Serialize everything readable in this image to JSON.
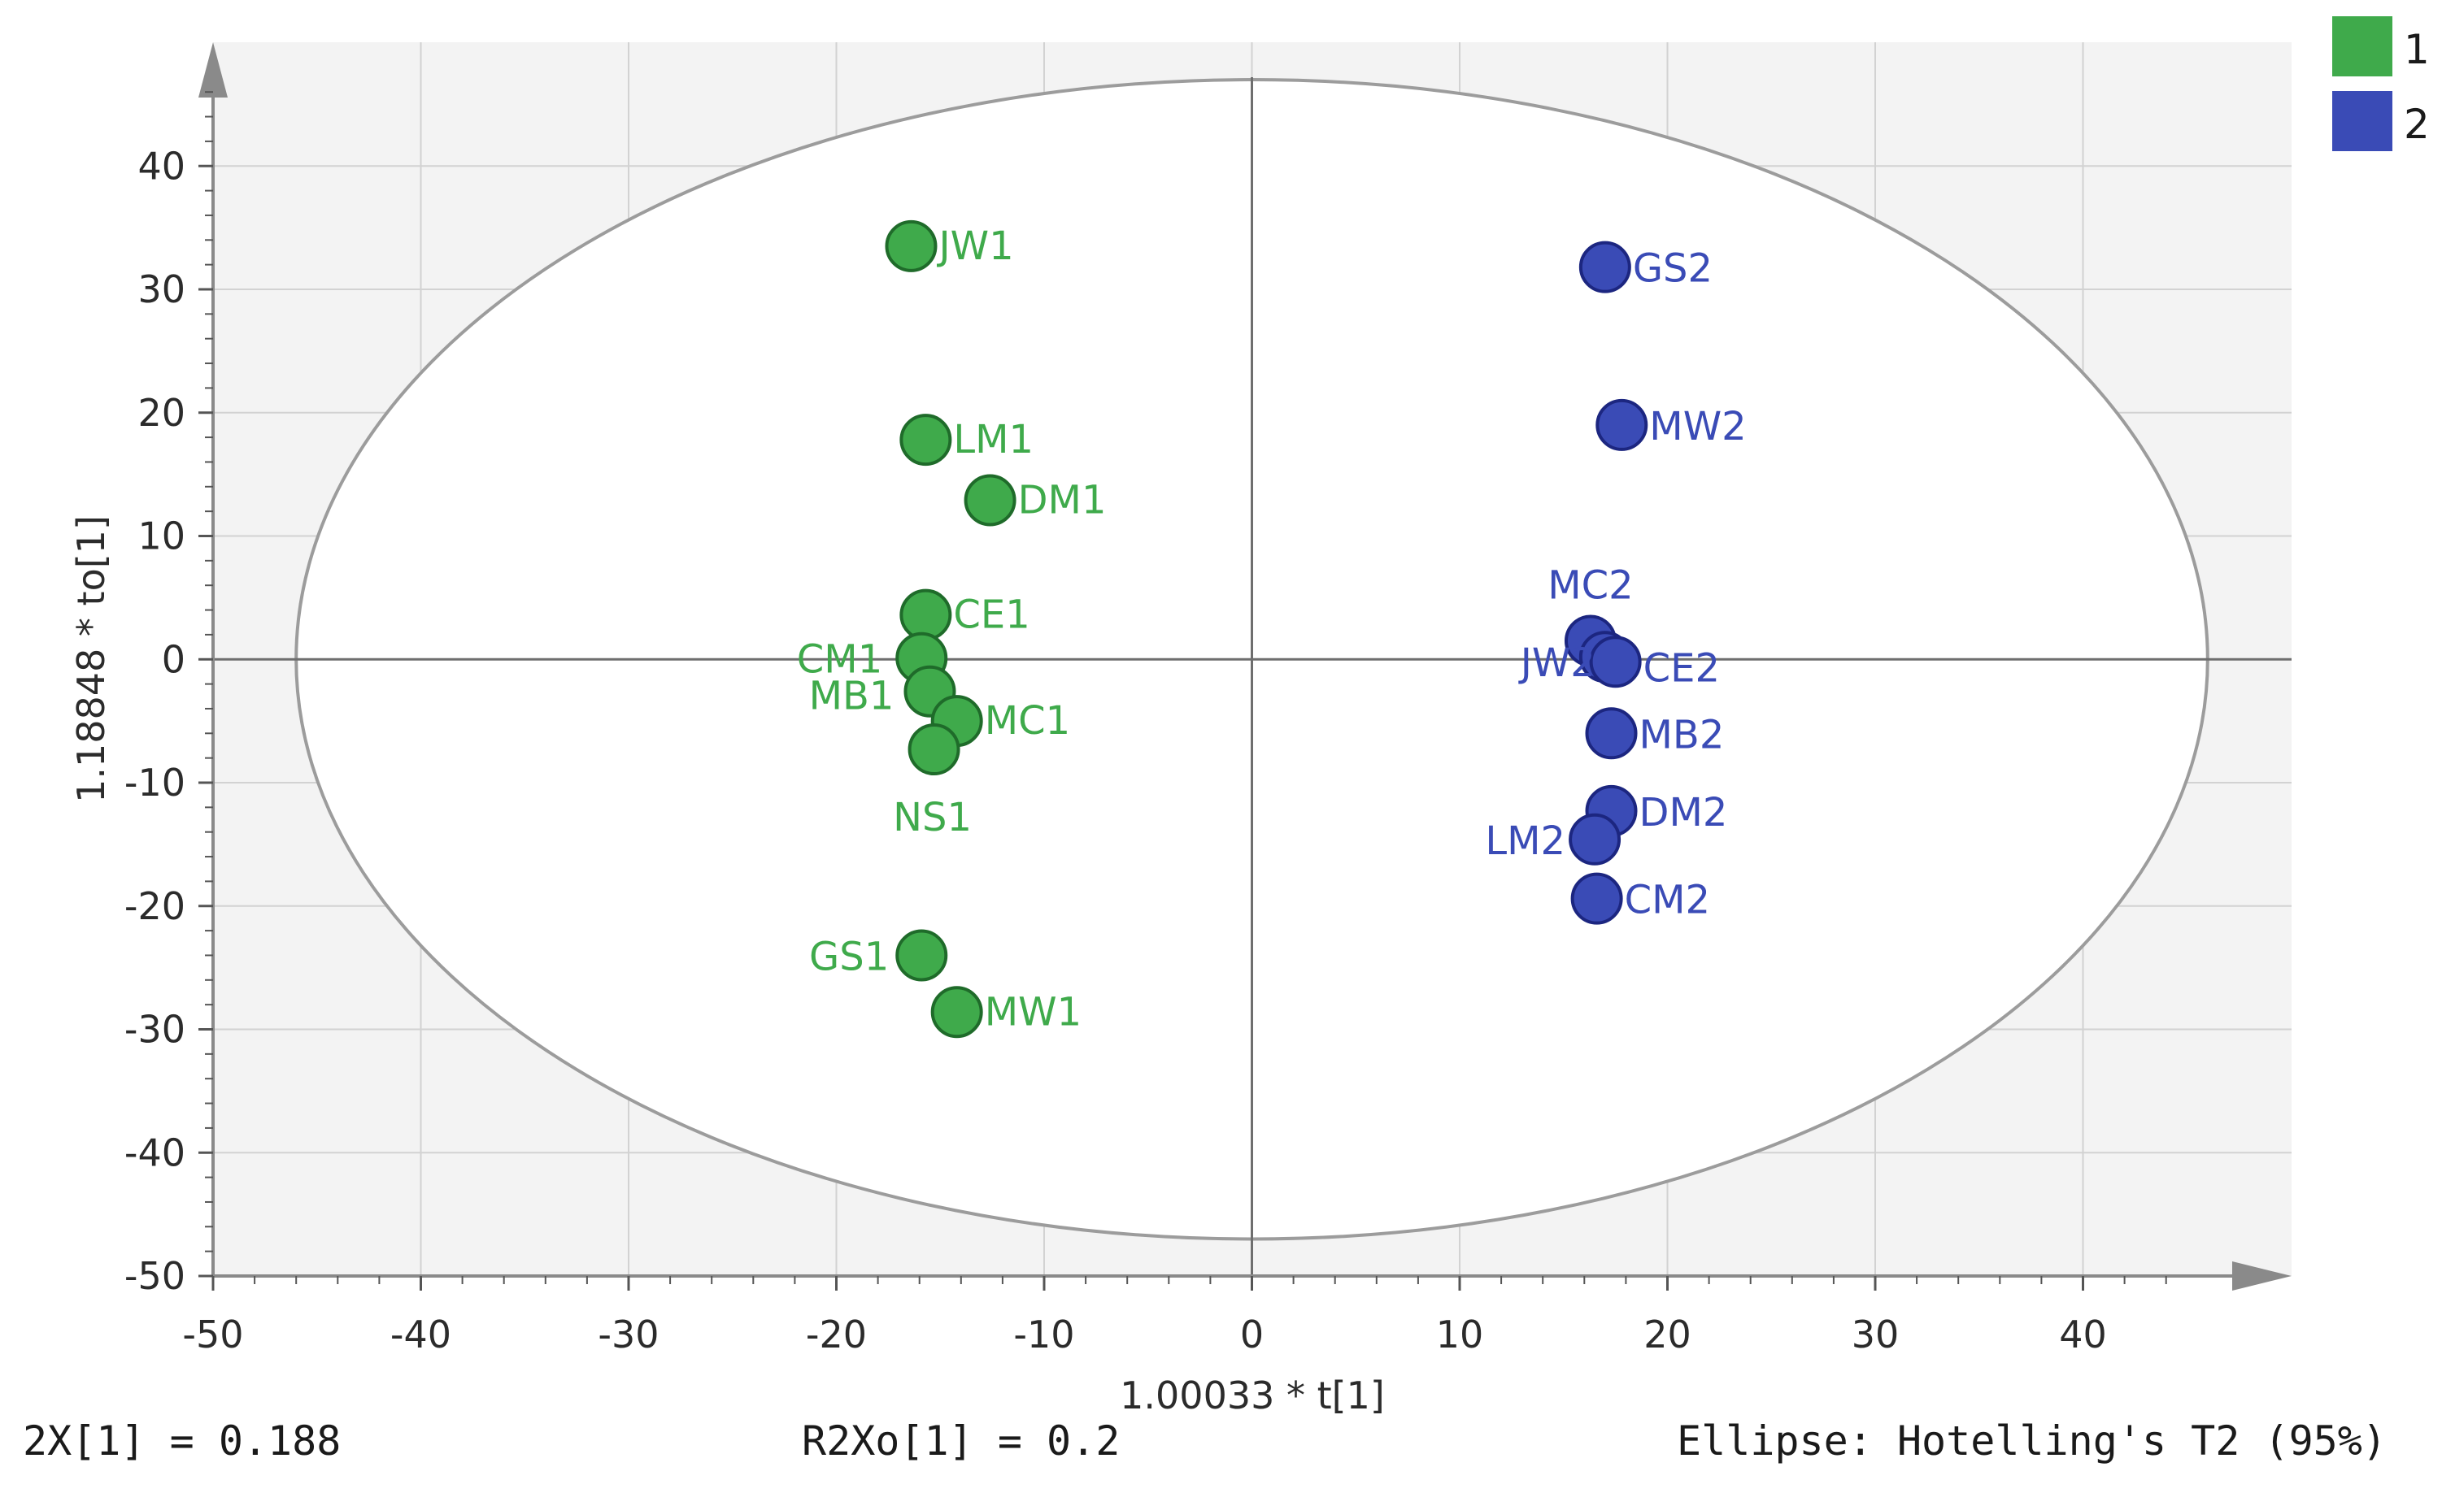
{
  "chart_data": {
    "type": "scatter",
    "xlabel": "1.00033 * t[1]",
    "ylabel": "1.18848 * to[1]",
    "xlim": [
      -50,
      50
    ],
    "ylim": [
      -50,
      50
    ],
    "xticks": [
      -50,
      -40,
      -30,
      -20,
      -10,
      0,
      10,
      20,
      30,
      40
    ],
    "yticks": [
      40,
      30,
      20,
      10,
      0,
      -10,
      -20,
      -30,
      -40,
      -50
    ],
    "grid": true,
    "legend_position": "top-right",
    "ellipse": {
      "label": "Ellipse: Hotelling's T2 (95%)",
      "rx": 46,
      "ry": 47
    },
    "colors": {
      "1": "#3faa4b",
      "2": "#3a4bb6"
    },
    "series": [
      {
        "name": "1",
        "color": "#3faa4b",
        "points": [
          {
            "label": "JW1",
            "x": -16.4,
            "y": 33.5
          },
          {
            "label": "LM1",
            "x": -15.7,
            "y": 17.8
          },
          {
            "label": "DM1",
            "x": -12.6,
            "y": 12.9
          },
          {
            "label": "CE1",
            "x": -15.7,
            "y": 3.6
          },
          {
            "label": "CM1",
            "x": -15.9,
            "y": 0.1
          },
          {
            "label": "MB1",
            "x": -15.5,
            "y": -2.6
          },
          {
            "label": "MC1",
            "x": -14.2,
            "y": -5.0
          },
          {
            "label": "NS1",
            "x": -15.3,
            "y": -7.3
          },
          {
            "label": "GS1",
            "x": -15.9,
            "y": -24.0
          },
          {
            "label": "MW1",
            "x": -14.2,
            "y": -28.6
          }
        ]
      },
      {
        "name": "2",
        "color": "#3a4bb6",
        "points": [
          {
            "label": "GS2",
            "x": 17.0,
            "y": 31.8
          },
          {
            "label": "MW2",
            "x": 17.8,
            "y": 19.0
          },
          {
            "label": "MC2",
            "x": 16.3,
            "y": 1.5
          },
          {
            "label": "JW2",
            "x": 17.0,
            "y": 0.2
          },
          {
            "label": "CE2",
            "x": 17.5,
            "y": -0.2
          },
          {
            "label": "MB2",
            "x": 17.3,
            "y": -6.0
          },
          {
            "label": "DM2",
            "x": 17.3,
            "y": -12.3
          },
          {
            "label": "LM2",
            "x": 16.5,
            "y": -14.6
          },
          {
            "label": "CM2",
            "x": 16.6,
            "y": -19.4
          }
        ]
      }
    ]
  },
  "footer": {
    "left": "2X[1] = 0.188",
    "middle": "R2Xo[1] = 0.2",
    "right": "Ellipse: Hotelling's T2 (95%)"
  }
}
